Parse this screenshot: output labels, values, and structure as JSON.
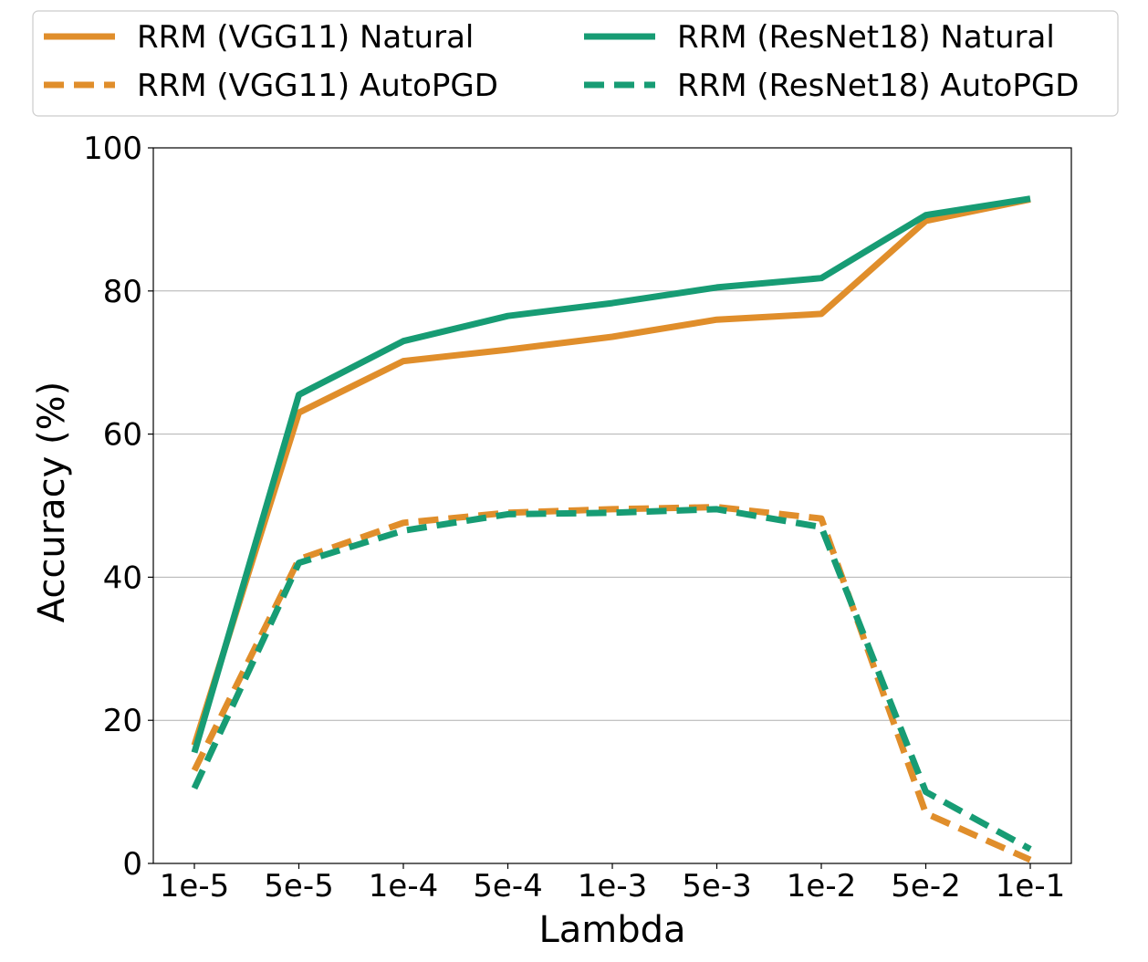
{
  "chart_data": {
    "type": "line",
    "title": "",
    "xlabel": "Lambda",
    "ylabel": "Accuracy (%)",
    "categories": [
      "1e-5",
      "5e-5",
      "1e-4",
      "5e-4",
      "1e-3",
      "5e-3",
      "1e-2",
      "5e-2",
      "1e-1"
    ],
    "yticks": [
      "0",
      "20",
      "40",
      "60",
      "80",
      "100"
    ],
    "ylim": [
      0,
      100
    ],
    "grid": "horizontal",
    "legend_position": "top",
    "series": [
      {
        "name": "RRM (VGG11) Natural",
        "color": "#e08e2b",
        "style": "solid",
        "values": [
          16.5,
          63.0,
          70.2,
          71.8,
          73.6,
          76.0,
          76.8,
          89.8,
          92.8
        ]
      },
      {
        "name": "RRM (ResNet18)  Natural",
        "color": "#179c74",
        "style": "solid",
        "values": [
          15.5,
          65.5,
          73.0,
          76.5,
          78.3,
          80.5,
          81.8,
          90.6,
          92.9
        ]
      },
      {
        "name": "RRM (VGG11) AutoPGD",
        "color": "#e08e2b",
        "style": "dashed",
        "values": [
          13.0,
          42.5,
          47.6,
          49.0,
          49.5,
          49.8,
          48.2,
          7.0,
          0.5
        ]
      },
      {
        "name": "RRM (ResNet18) AutoPGD",
        "color": "#179c74",
        "style": "dashed",
        "values": [
          10.5,
          42.0,
          46.5,
          48.8,
          49.0,
          49.5,
          47.0,
          10.0,
          2.0
        ]
      }
    ]
  }
}
